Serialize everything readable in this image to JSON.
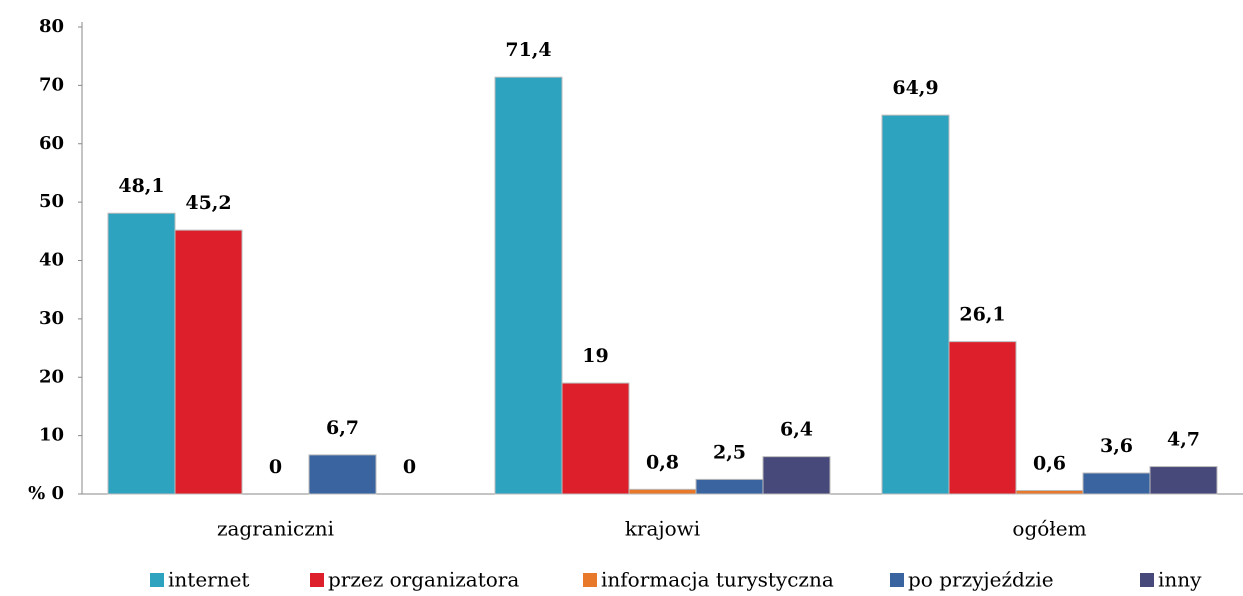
{
  "chart_data": {
    "type": "bar",
    "categories": [
      "zagraniczni",
      "krajowi",
      "ogółem"
    ],
    "series": [
      {
        "name": "internet",
        "color": "#2ea3bf",
        "values": [
          48.1,
          71.4,
          64.9
        ],
        "value_labels": [
          "48,1",
          "71,4",
          "64,9"
        ]
      },
      {
        "name": "przez organizatora",
        "color": "#dc1f2b",
        "values": [
          45.2,
          19,
          26.1
        ],
        "value_labels": [
          "45,2",
          "19",
          "26,1"
        ]
      },
      {
        "name": "informacja turystyczna",
        "color": "#e8792b",
        "values": [
          0,
          0.8,
          0.6
        ],
        "value_labels": [
          "0",
          "0,8",
          "0,6"
        ]
      },
      {
        "name": "po przyjeździe",
        "color": "#3a64a0",
        "values": [
          6.7,
          2.5,
          3.6
        ],
        "value_labels": [
          "6,7",
          "2,5",
          "3,6"
        ]
      },
      {
        "name": "inny",
        "color": "#47497a",
        "values": [
          0,
          6.4,
          4.7
        ],
        "value_labels": [
          "0",
          "6,4",
          "4,7"
        ]
      }
    ],
    "ylim": [
      0,
      80
    ],
    "yticks": [
      {
        "value": 0,
        "label": "% 0"
      },
      10,
      20,
      30,
      40,
      50,
      60,
      70,
      80
    ],
    "legend": "bottom"
  }
}
